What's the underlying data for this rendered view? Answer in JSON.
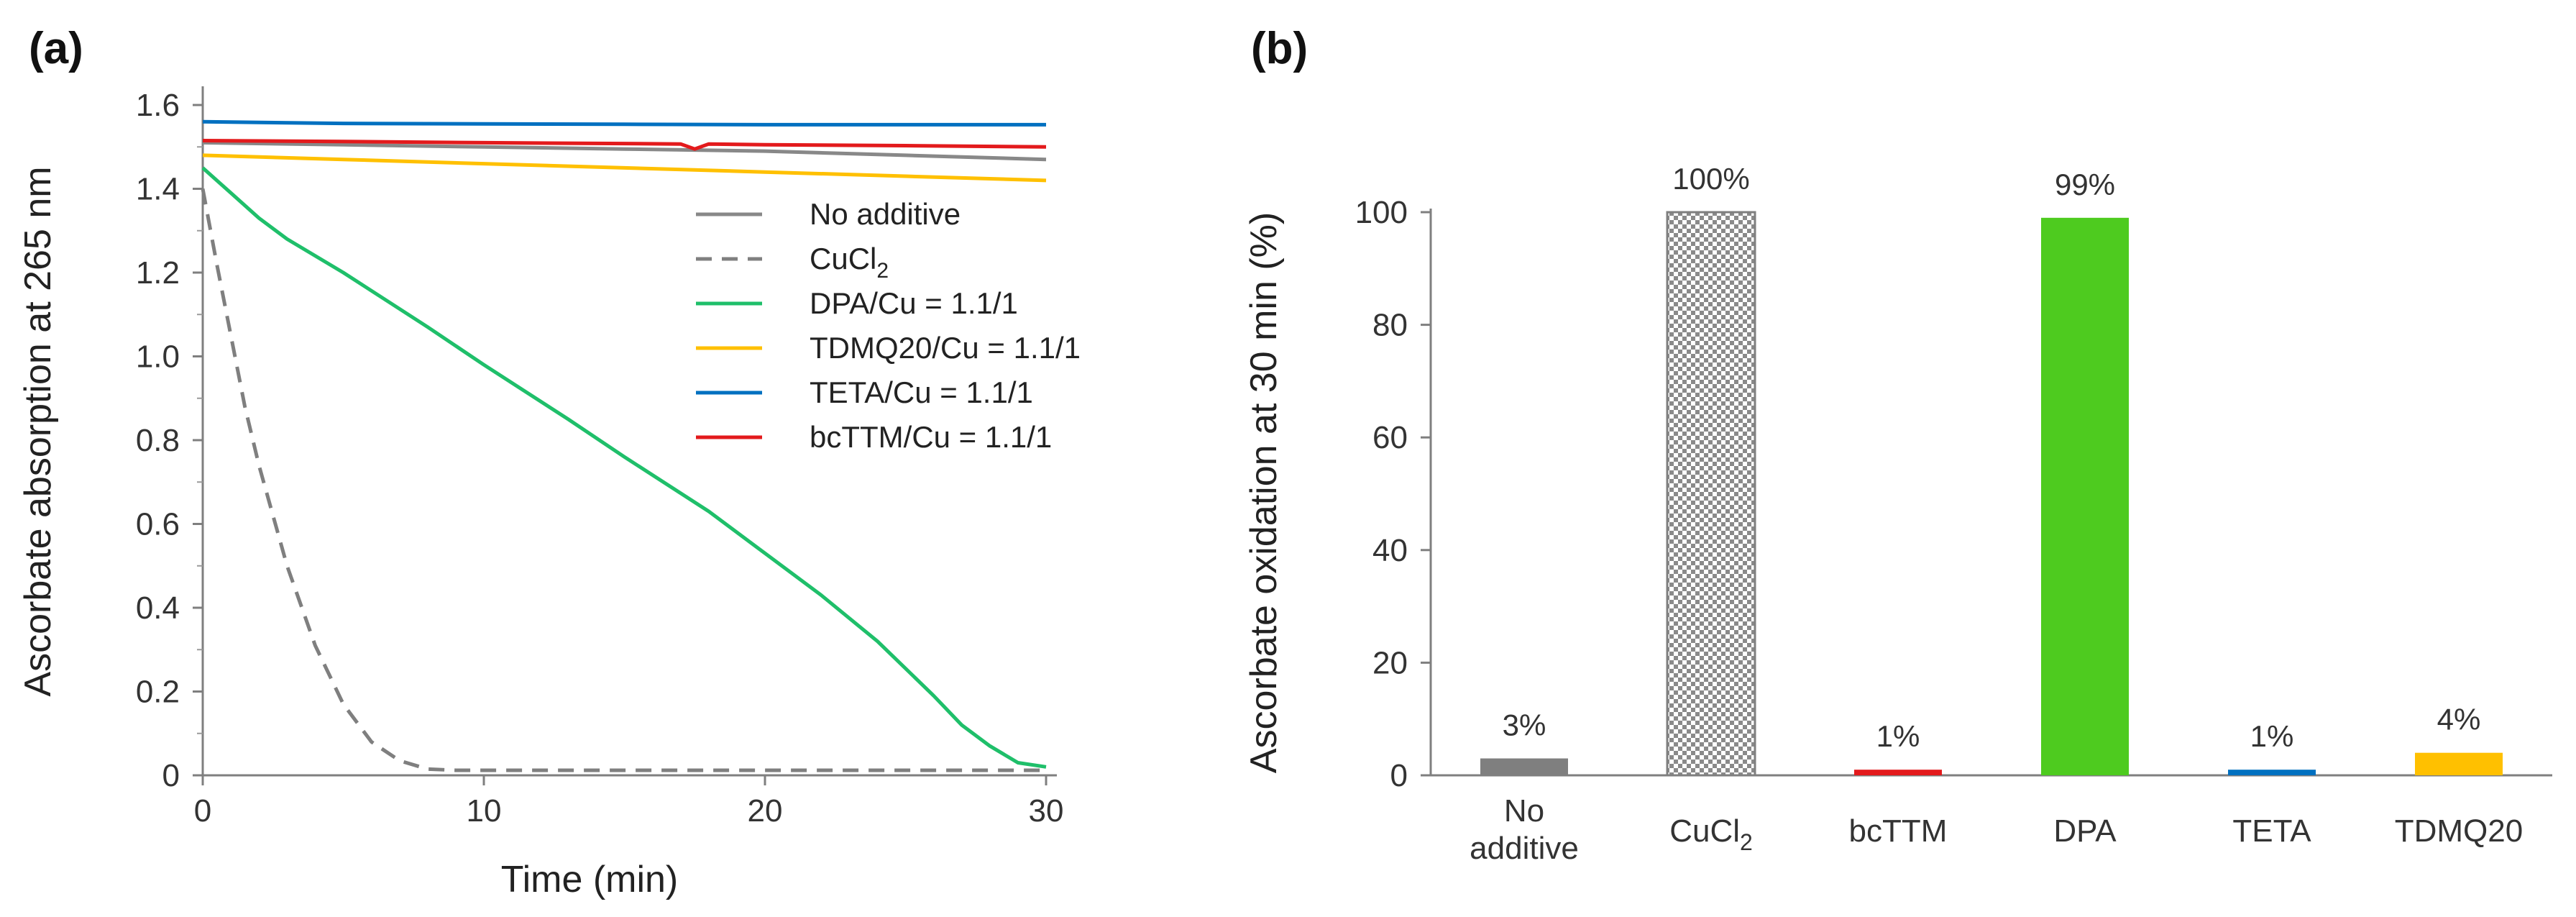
{
  "chart_data": [
    {
      "panel": "(a)",
      "type": "line",
      "title": "",
      "xlabel": "Time (min)",
      "ylabel": "Ascorbate absorption at 265 nm",
      "xlim": [
        0,
        30
      ],
      "ylim": [
        0,
        1.6
      ],
      "xticks": [
        "0",
        "10",
        "20",
        "30"
      ],
      "yticks": [
        "0",
        "0.2",
        "0.4",
        "0.6",
        "0.8",
        "1.0",
        "1.2",
        "1.4",
        "1.6"
      ],
      "legend_position": "right-middle",
      "series": [
        {
          "name": "No additive",
          "color": "#888888",
          "style": "solid",
          "x": [
            0,
            5,
            10,
            15,
            20,
            25,
            30
          ],
          "y": [
            1.51,
            1.505,
            1.5,
            1.495,
            1.49,
            1.48,
            1.47
          ]
        },
        {
          "name": "CuCl",
          "name_sub": "2",
          "color": "#7f7f7f",
          "style": "dashed",
          "x": [
            0,
            0.5,
            1,
            1.5,
            2,
            3,
            4,
            5,
            6,
            7,
            8,
            9,
            10,
            15,
            20,
            25,
            30
          ],
          "y": [
            1.4,
            1.22,
            1.05,
            0.88,
            0.74,
            0.5,
            0.31,
            0.17,
            0.08,
            0.035,
            0.015,
            0.012,
            0.012,
            0.012,
            0.012,
            0.012,
            0.012
          ]
        },
        {
          "name": "DPA/Cu = 1.1/1",
          "color": "#1fbf6a",
          "style": "solid",
          "x": [
            0,
            1,
            2,
            3,
            5,
            8,
            10,
            13,
            15,
            18,
            20,
            22,
            24,
            26,
            27,
            28,
            29,
            30
          ],
          "y": [
            1.45,
            1.39,
            1.33,
            1.28,
            1.2,
            1.07,
            0.98,
            0.85,
            0.76,
            0.63,
            0.53,
            0.43,
            0.32,
            0.19,
            0.12,
            0.07,
            0.03,
            0.02
          ]
        },
        {
          "name": "TDMQ20/Cu = 1.1/1",
          "color": "#ffc000",
          "style": "solid",
          "x": [
            0,
            5,
            10,
            15,
            20,
            25,
            30
          ],
          "y": [
            1.48,
            1.47,
            1.46,
            1.45,
            1.44,
            1.43,
            1.42
          ]
        },
        {
          "name": "TETA/Cu = 1.1/1",
          "color": "#0070c0",
          "style": "solid",
          "x": [
            0,
            5,
            10,
            15,
            20,
            25,
            30
          ],
          "y": [
            1.56,
            1.556,
            1.555,
            1.554,
            1.553,
            1.553,
            1.553
          ]
        },
        {
          "name": "bcTTM/Cu = 1.1/1",
          "color": "#e31a1c",
          "style": "solid",
          "x": [
            0,
            5,
            10,
            15,
            17,
            17.5,
            18,
            20,
            25,
            30
          ],
          "y": [
            1.515,
            1.513,
            1.51,
            1.508,
            1.507,
            1.495,
            1.507,
            1.505,
            1.503,
            1.5
          ]
        }
      ]
    },
    {
      "panel": "(b)",
      "type": "bar",
      "title": "",
      "xlabel": "",
      "ylabel": "Ascorbate oxidation at 30 min (%)",
      "ylim": [
        0,
        100
      ],
      "yticks": [
        "0",
        "20",
        "40",
        "60",
        "80",
        "100"
      ],
      "categories": [
        "No additive",
        "CuCl2",
        "bcTTM",
        "DPA",
        "TETA",
        "TDMQ20"
      ],
      "category_labels": [
        {
          "lines": [
            "No",
            "additive"
          ]
        },
        {
          "text": "CuCl",
          "sub": "2"
        },
        {
          "text": "bcTTM"
        },
        {
          "text": "DPA"
        },
        {
          "text": "TETA"
        },
        {
          "text": "TDMQ20"
        }
      ],
      "values": [
        3,
        100,
        1,
        99,
        1,
        4
      ],
      "data_labels": [
        "3%",
        "100%",
        "1%",
        "99%",
        "1%",
        "4%"
      ],
      "colors": [
        "#7f7f7f",
        "checker",
        "#e31a1c",
        "#4ecb1f",
        "#0070c0",
        "#ffc000"
      ]
    }
  ]
}
